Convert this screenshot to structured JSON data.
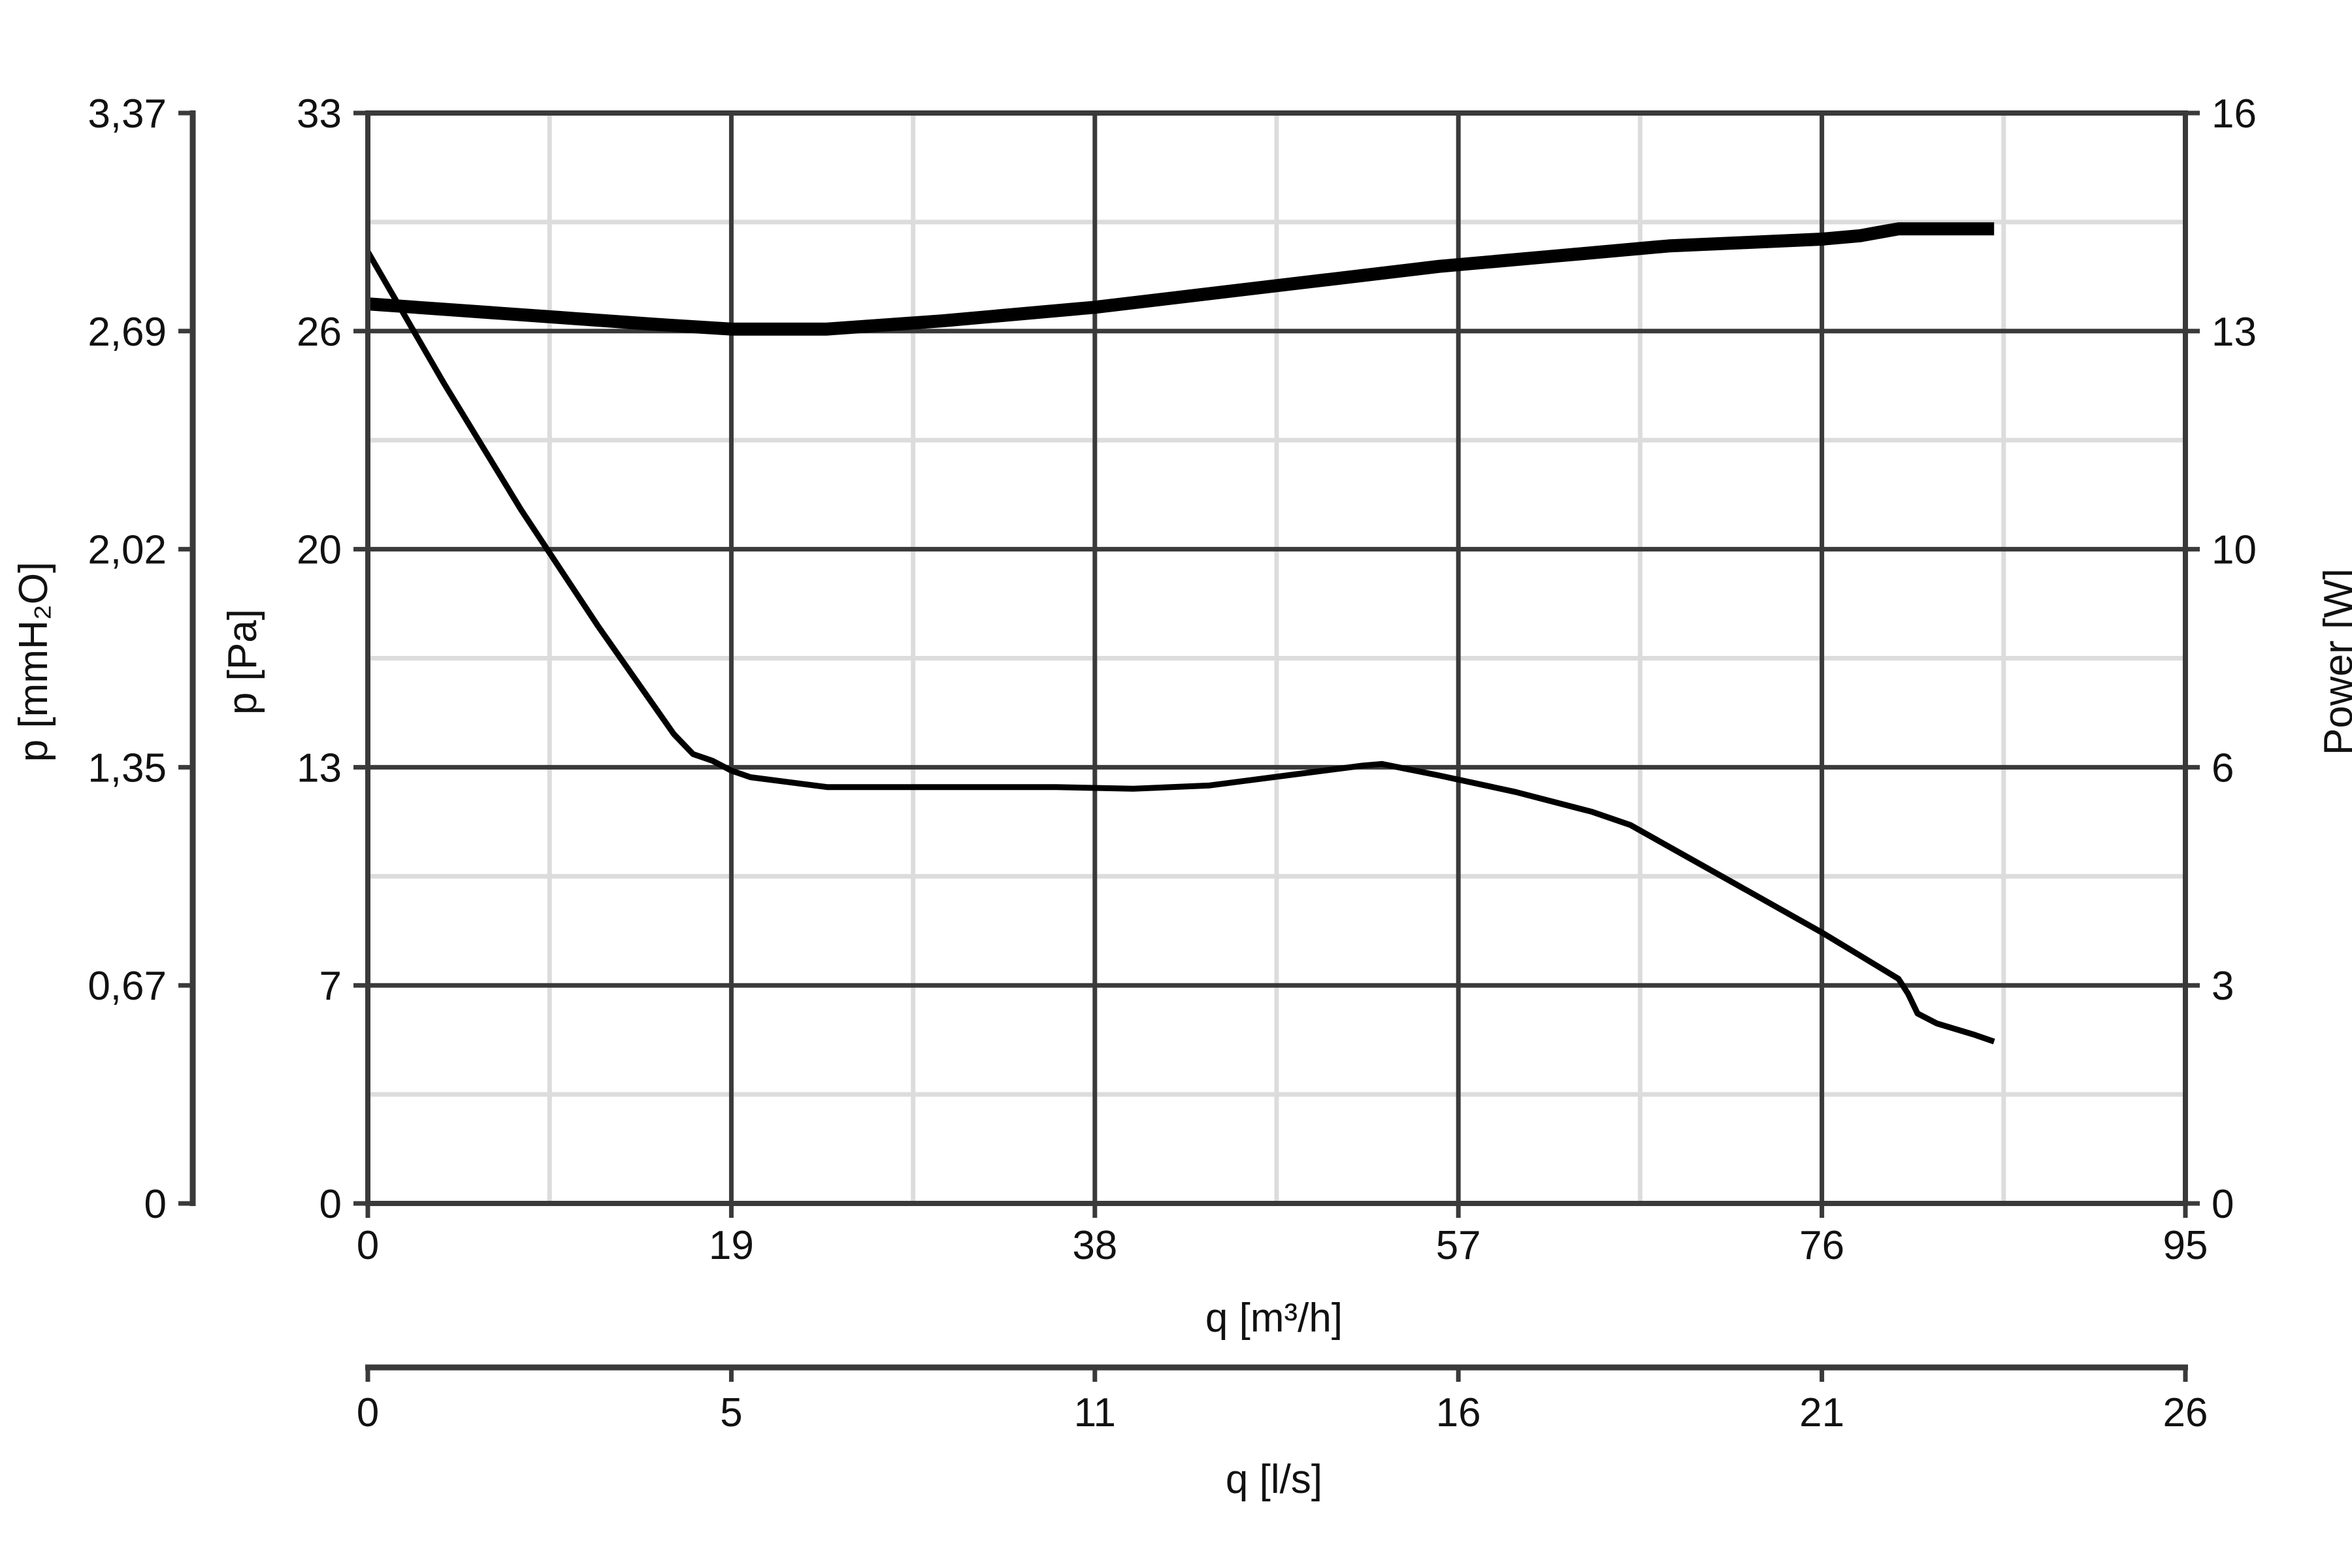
{
  "chart_data": {
    "type": "line",
    "title": "",
    "x_axis": {
      "label": "q [m³/h]",
      "range": [
        0,
        95
      ],
      "ticks": [
        "0",
        "19",
        "38",
        "57",
        "76",
        "95"
      ]
    },
    "x2_axis": {
      "label": "q [l/s]",
      "range": [
        0,
        26
      ],
      "ticks": [
        "0",
        "5",
        "11",
        "16",
        "21",
        "26"
      ]
    },
    "y_axis": {
      "label": "p [Pa]",
      "range": [
        0,
        33
      ],
      "ticks": [
        "0",
        "7",
        "13",
        "20",
        "26",
        "33"
      ]
    },
    "y2_axis": {
      "label": "p [mmH₂O]",
      "range": [
        0,
        3.37
      ],
      "ticks": [
        "0",
        "0,67",
        "1,35",
        "2,02",
        "2,69",
        "3,37"
      ]
    },
    "y3_axis": {
      "label": "Power [W]",
      "range": [
        0,
        16
      ],
      "ticks": [
        "0",
        "3",
        "6",
        "10",
        "13",
        "16"
      ]
    },
    "grid": true,
    "series": [
      {
        "axis": "pressure",
        "x": [
          0,
          4,
          8,
          12,
          16,
          17,
          18,
          19,
          20,
          22,
          24,
          28,
          32,
          36,
          40,
          44,
          48,
          52,
          53,
          56,
          60,
          64,
          66,
          68,
          72,
          76,
          78,
          80,
          80.5,
          81,
          82,
          84,
          85
        ],
        "y": [
          28.8,
          24.8,
          21.0,
          17.5,
          14.2,
          13.6,
          13.4,
          13.1,
          12.9,
          12.75,
          12.6,
          12.6,
          12.6,
          12.6,
          12.55,
          12.65,
          12.95,
          13.25,
          13.3,
          12.95,
          12.45,
          11.85,
          11.45,
          10.8,
          9.5,
          8.2,
          7.5,
          6.8,
          6.35,
          5.75,
          5.45,
          5.1,
          4.9
        ]
      },
      {
        "axis": "power",
        "x": [
          0,
          5,
          10,
          15,
          19,
          20,
          24,
          30,
          38,
          44,
          50,
          56,
          62,
          68,
          72,
          76,
          78,
          79,
          80,
          82,
          85
        ],
        "y": [
          13.2,
          13.1,
          13.0,
          12.9,
          12.83,
          12.83,
          12.83,
          12.95,
          13.15,
          13.35,
          13.55,
          13.75,
          13.9,
          14.05,
          14.1,
          14.15,
          14.2,
          14.25,
          14.3,
          14.3,
          14.3
        ]
      }
    ]
  }
}
